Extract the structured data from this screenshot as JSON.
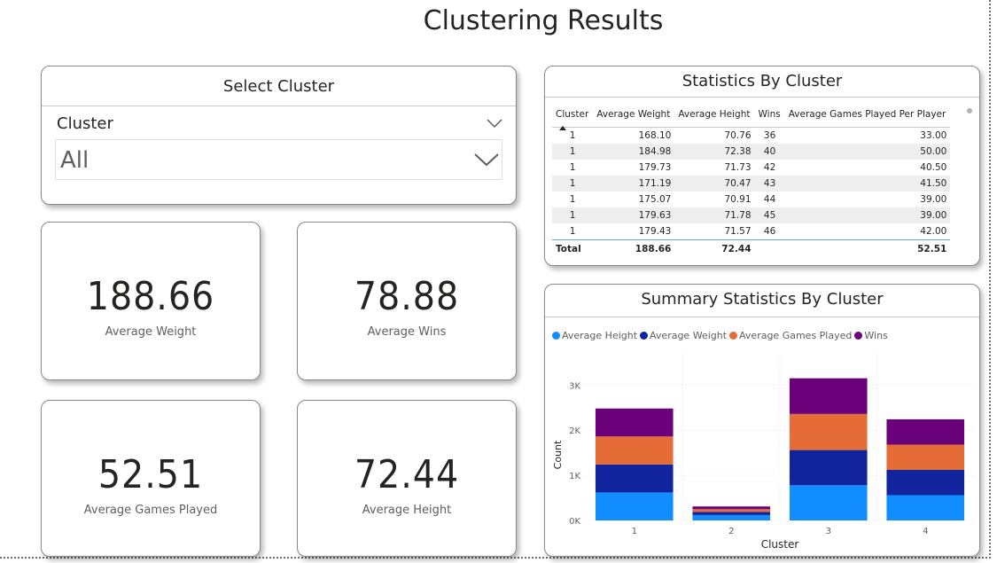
{
  "page": {
    "title": "Clustering Results"
  },
  "slicer": {
    "title": "Select Cluster",
    "field": "Cluster",
    "selected": "All"
  },
  "kpis": [
    {
      "value": "188.66",
      "label": "Average Weight"
    },
    {
      "value": "78.88",
      "label": "Average Wins"
    },
    {
      "value": "52.51",
      "label": "Average Games Played"
    },
    {
      "value": "72.44",
      "label": "Average Height"
    }
  ],
  "table": {
    "title": "Statistics By Cluster",
    "columns": [
      "Cluster",
      "Average Weight",
      "Average Height",
      "Wins",
      "Average Games Played Per Player"
    ],
    "rows": [
      [
        "1",
        "168.10",
        "70.76",
        "36",
        "33.00"
      ],
      [
        "1",
        "184.98",
        "72.38",
        "40",
        "50.00"
      ],
      [
        "1",
        "179.73",
        "71.73",
        "42",
        "40.50"
      ],
      [
        "1",
        "171.19",
        "70.47",
        "43",
        "41.50"
      ],
      [
        "1",
        "175.07",
        "70.91",
        "44",
        "39.00"
      ],
      [
        "1",
        "179.63",
        "71.78",
        "45",
        "39.00"
      ],
      [
        "1",
        "179.43",
        "71.57",
        "46",
        "42.00"
      ]
    ],
    "total": [
      "Total",
      "188.66",
      "72.44",
      "",
      "52.51"
    ]
  },
  "chart_card": {
    "title": "Summary Statistics By Cluster"
  },
  "chart_data": {
    "type": "bar",
    "stacked": true,
    "title": "Summary Statistics By Cluster",
    "xlabel": "Cluster",
    "ylabel": "Count",
    "categories": [
      "1",
      "2",
      "3",
      "4"
    ],
    "ylim": [
      0,
      3300
    ],
    "yticks": [
      0,
      1000,
      2000,
      3000
    ],
    "ytick_labels": [
      "0K",
      "1K",
      "2K",
      "3K"
    ],
    "legend_position": "top-left",
    "series": [
      {
        "name": "Average Height",
        "color": "#118DFF",
        "values": [
          620,
          120,
          780,
          560
        ]
      },
      {
        "name": "Average Weight",
        "color": "#12239E",
        "values": [
          620,
          70,
          780,
          560
        ]
      },
      {
        "name": "Average Games Played",
        "color": "#E66C37",
        "values": [
          620,
          60,
          800,
          560
        ]
      },
      {
        "name": "Wins",
        "color": "#6B007B",
        "values": [
          620,
          60,
          790,
          560
        ]
      }
    ]
  }
}
